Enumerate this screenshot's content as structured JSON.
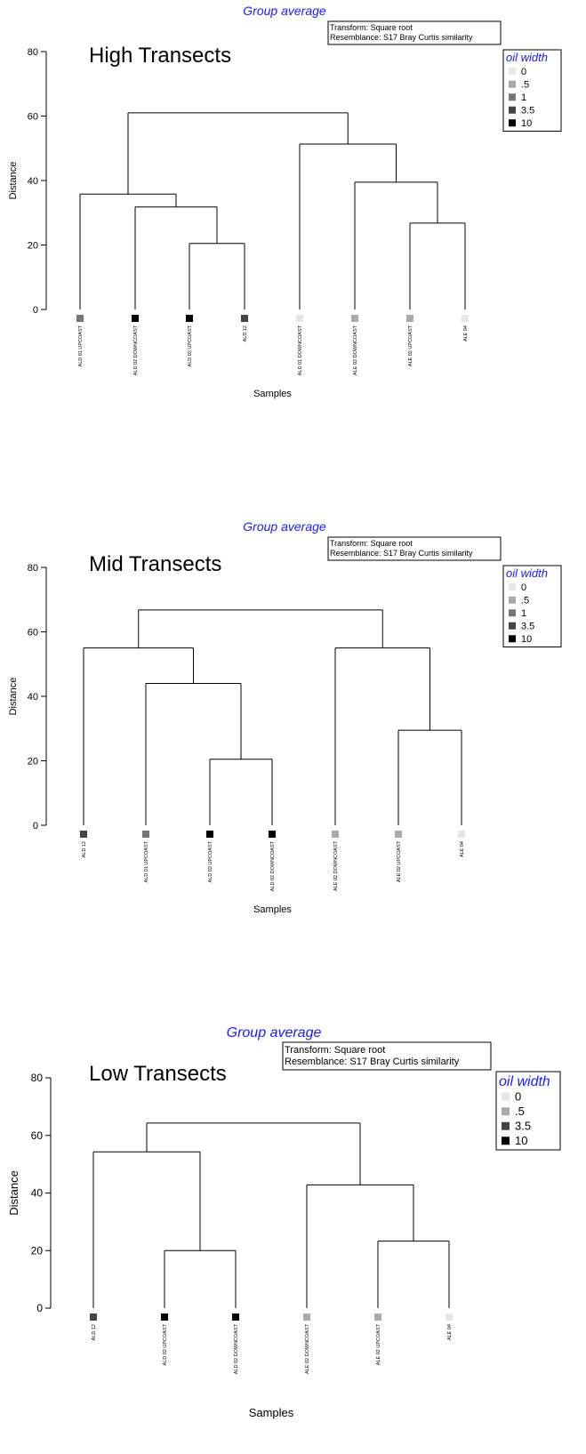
{
  "chart_data": [
    {
      "type": "dendrogram",
      "subtitle": "Group average",
      "title": "High Transects",
      "info": [
        "Transform: Square root",
        "Resemblance: S17 Bray Curtis similarity"
      ],
      "xlabel": "Samples",
      "ylabel": "Distance",
      "ylim": [
        0,
        80
      ],
      "yticks": [
        0,
        20,
        40,
        60,
        80
      ],
      "legend": {
        "title": "oil width",
        "entries": [
          {
            "label": "0",
            "color": "#e6e6e6"
          },
          {
            "label": ".5",
            "color": "#aaaaaa"
          },
          {
            "label": "1",
            "color": "#777777"
          },
          {
            "label": "3.5",
            "color": "#444444"
          },
          {
            "label": "10",
            "color": "#000000"
          }
        ]
      },
      "leaves": [
        {
          "label": "ALD 01 UPCOAST",
          "oil": "1"
        },
        {
          "label": "ALD 02 DOWNCOAST",
          "oil": "10"
        },
        {
          "label": "ALD 02 UPCOAST",
          "oil": "10"
        },
        {
          "label": "ALD 12",
          "oil": "3.5"
        },
        {
          "label": "ALD 01 DOWNCOAST",
          "oil": "0"
        },
        {
          "label": "ALE 02 DOWNCOAST",
          "oil": ".5"
        },
        {
          "label": "ALE 02 UPCOAST",
          "oil": ".5"
        },
        {
          "label": "ALE 04",
          "oil": "0"
        }
      ],
      "merges": [
        {
          "a": 2,
          "b": 3,
          "height": 20.5
        },
        {
          "a": 6,
          "b": 7,
          "height": 26.8
        },
        {
          "a": 1,
          "b": 8,
          "height": 31.8
        },
        {
          "a": 0,
          "b": 10,
          "height": 35.8
        },
        {
          "a": 5,
          "b": 9,
          "height": 39.5
        },
        {
          "a": 4,
          "b": 12,
          "height": 51.3
        },
        {
          "a": 11,
          "b": 13,
          "height": 61.0
        }
      ]
    },
    {
      "type": "dendrogram",
      "subtitle": "Group average",
      "title": "Mid Transects",
      "info": [
        "Transform: Square root",
        "Resemblance: S17 Bray Curtis similarity"
      ],
      "xlabel": "Samples",
      "ylabel": "Distance",
      "ylim": [
        0,
        80
      ],
      "yticks": [
        0,
        20,
        40,
        60,
        80
      ],
      "legend": {
        "title": "oil width",
        "entries": [
          {
            "label": "0",
            "color": "#e6e6e6"
          },
          {
            "label": ".5",
            "color": "#aaaaaa"
          },
          {
            "label": "1",
            "color": "#777777"
          },
          {
            "label": "3.5",
            "color": "#444444"
          },
          {
            "label": "10",
            "color": "#000000"
          }
        ]
      },
      "leaves": [
        {
          "label": "ALD 12",
          "oil": "3.5"
        },
        {
          "label": "ALD 01 UPCOAST",
          "oil": "1"
        },
        {
          "label": "ALD 02 UPCOAST",
          "oil": "10"
        },
        {
          "label": "ALD 02 DOWNCOAST",
          "oil": "10"
        },
        {
          "label": "ALE 02 DOWNCOAST",
          "oil": ".5"
        },
        {
          "label": "ALE 02 UPCOAST",
          "oil": ".5"
        },
        {
          "label": "ALE 04",
          "oil": "0"
        }
      ],
      "merges": [
        {
          "a": 2,
          "b": 3,
          "height": 20.5
        },
        {
          "a": 5,
          "b": 6,
          "height": 29.5
        },
        {
          "a": 1,
          "b": 7,
          "height": 44.0
        },
        {
          "a": 0,
          "b": 9,
          "height": 55.0
        },
        {
          "a": 4,
          "b": 8,
          "height": 55.0
        },
        {
          "a": 10,
          "b": 11,
          "height": 66.8
        }
      ]
    },
    {
      "type": "dendrogram",
      "subtitle": "Group average",
      "title": "Low Transects",
      "info": [
        "Transform: Square root",
        "Resemblance: S17 Bray Curtis similarity"
      ],
      "xlabel": "Samples",
      "ylabel": "Distance",
      "ylim": [
        0,
        80
      ],
      "yticks": [
        0,
        20,
        40,
        60,
        80
      ],
      "legend": {
        "title": "oil width",
        "entries": [
          {
            "label": "0",
            "color": "#e6e6e6"
          },
          {
            "label": ".5",
            "color": "#aaaaaa"
          },
          {
            "label": "3.5",
            "color": "#444444"
          },
          {
            "label": "10",
            "color": "#000000"
          }
        ]
      },
      "leaves": [
        {
          "label": "ALD 12",
          "oil": "3.5"
        },
        {
          "label": "ALD 02 UPCOAST",
          "oil": "10"
        },
        {
          "label": "ALD 02 DOWNCOAST",
          "oil": "10"
        },
        {
          "label": "ALE 02 DOWNCOAST",
          "oil": ".5"
        },
        {
          "label": "ALE 02 UPCOAST",
          "oil": ".5"
        },
        {
          "label": "ALE 04",
          "oil": "0"
        }
      ],
      "merges": [
        {
          "a": 1,
          "b": 2,
          "height": 20.0
        },
        {
          "a": 4,
          "b": 5,
          "height": 23.3
        },
        {
          "a": 3,
          "b": 7,
          "height": 42.8
        },
        {
          "a": 0,
          "b": 6,
          "height": 54.3
        },
        {
          "a": 9,
          "b": 8,
          "height": 64.3
        }
      ]
    }
  ]
}
